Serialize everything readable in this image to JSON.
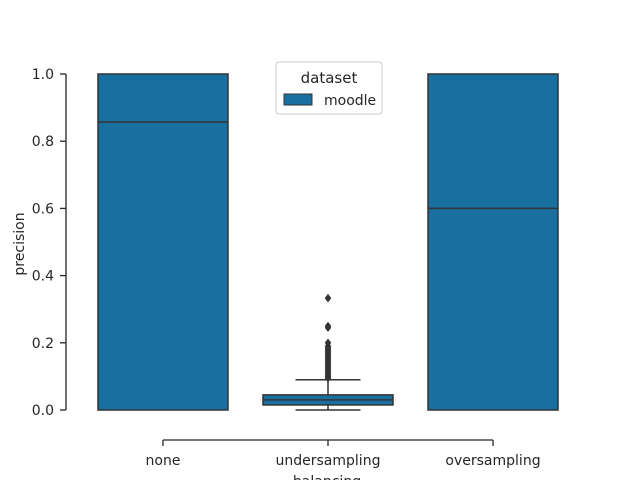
{
  "chart_data": {
    "type": "box",
    "xlabel": "balancing",
    "ylabel": "precision",
    "ylim": [
      0,
      1
    ],
    "yticks": [
      "0.0",
      "0.2",
      "0.4",
      "0.6",
      "0.8",
      "1.0"
    ],
    "categories": [
      "none",
      "undersampling",
      "oversampling"
    ],
    "legend": {
      "title": "dataset",
      "placement": "top-center",
      "entries": [
        "moodle"
      ]
    },
    "colors": {
      "box": "#1a6fa1",
      "edge": "#333333",
      "axis": "#262626"
    },
    "series": [
      {
        "name": "moodle",
        "boxes": [
          {
            "category": "none",
            "q1": 0.0,
            "median": 0.857,
            "q3": 1.0,
            "whisker_low": 0.0,
            "whisker_high": 1.0,
            "outliers": []
          },
          {
            "category": "undersampling",
            "q1": 0.015,
            "median": 0.03,
            "q3": 0.045,
            "whisker_low": 0.0,
            "whisker_high": 0.09,
            "outliers": [
              0.095,
              0.1,
              0.105,
              0.11,
              0.115,
              0.12,
              0.125,
              0.13,
              0.135,
              0.14,
              0.145,
              0.15,
              0.155,
              0.16,
              0.165,
              0.17,
              0.175,
              0.18,
              0.185,
              0.19,
              0.2,
              0.245,
              0.25,
              0.333
            ]
          },
          {
            "category": "oversampling",
            "q1": 0.0,
            "median": 0.6,
            "q3": 1.0,
            "whisker_low": 0.0,
            "whisker_high": 1.0,
            "outliers": []
          }
        ]
      }
    ]
  }
}
